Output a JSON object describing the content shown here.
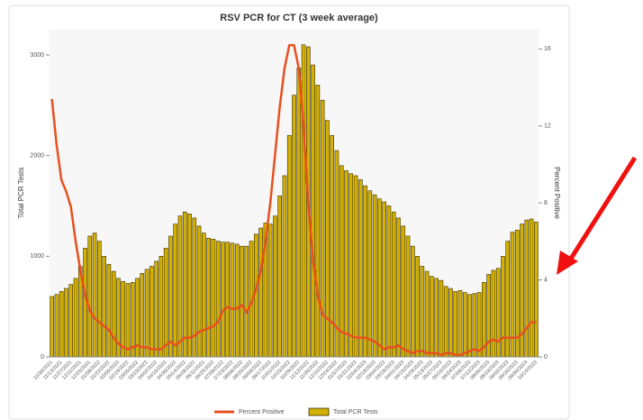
{
  "chart_data": {
    "type": "bar-line",
    "title": "RSV PCR for CT (3 week average)",
    "y_label": "Total PCR Tests",
    "y2_label": "Percent Positive",
    "categories": [
      "10/30/2021",
      null,
      "11/13/2021",
      null,
      "11/27/2021",
      null,
      "12/11/2021",
      null,
      "12/25/2021",
      null,
      "01/08/2022",
      null,
      "01/22/2022",
      null,
      "02/05/2022",
      null,
      "02/19/2022",
      null,
      "03/05/2022",
      null,
      "03/19/2022",
      null,
      "04/02/2022",
      null,
      "04/16/2022",
      null,
      "04/30/2022",
      null,
      "05/14/2022",
      null,
      "05/28/2022",
      null,
      "06/11/2022",
      null,
      "06/25/2022",
      null,
      "07/09/2022",
      null,
      "07/23/2022",
      null,
      "08/06/2022",
      null,
      "08/20/2022",
      null,
      "09/03/2022",
      null,
      "09/17/2022",
      null,
      "10/01/2022",
      null,
      "10/15/2022",
      null,
      "10/29/2022",
      null,
      "11/12/2022",
      null,
      "11/26/2022",
      null,
      "12/10/2022",
      null,
      "12/24/2022",
      null,
      "01/07/2023",
      null,
      "01/21/2023",
      null,
      "02/04/2023",
      null,
      "02/18/2023",
      null,
      "03/04/2023",
      null,
      "03/18/2023",
      null,
      "04/01/2023",
      null,
      "04/15/2023",
      null,
      "04/29/2023",
      null,
      "05/13/2023",
      null,
      "05/27/2023",
      null,
      "06/10/2023",
      null,
      "06/24/2023",
      null,
      "07/08/2023",
      null,
      "07/22/2023",
      null,
      "08/05/2023",
      null,
      "08/19/2023",
      null,
      "09/02/2023",
      null,
      "09/16/2023",
      null,
      "09/30/2023",
      null,
      "10/14/2023"
    ],
    "series": [
      {
        "name": "Percent Positive",
        "kind": "line",
        "axis": "y2",
        "color": "#e8501e",
        "values": [
          13.4,
          11,
          9.2,
          8.6,
          7.8,
          6,
          4.5,
          3.2,
          2.4,
          2,
          1.8,
          1.6,
          1.4,
          1,
          0.7,
          0.5,
          0.4,
          0.5,
          0.6,
          0.5,
          0.5,
          0.4,
          0.4,
          0.4,
          0.6,
          0.8,
          0.6,
          0.8,
          1,
          1,
          1.1,
          1.3,
          1.4,
          1.5,
          1.6,
          1.8,
          2.4,
          2.6,
          2.5,
          2.5,
          2.7,
          2.3,
          2.8,
          3.5,
          4.5,
          6,
          8,
          10.5,
          13,
          15,
          16.2,
          16.2,
          15,
          12,
          8,
          5,
          3.2,
          2.2,
          2,
          1.8,
          1.5,
          1.3,
          1.2,
          1.1,
          1,
          1,
          1,
          0.9,
          0.8,
          0.6,
          0.4,
          0.5,
          0.5,
          0.6,
          0.4,
          0.3,
          0.2,
          0.3,
          0.3,
          0.2,
          0.2,
          0.2,
          0.1,
          0.2,
          0.2,
          0.1,
          0.1,
          0.2,
          0.3,
          0.4,
          0.3,
          0.5,
          0.8,
          0.9,
          0.8,
          1,
          1,
          1,
          1,
          1.2,
          1.5,
          1.8,
          1.8
        ]
      },
      {
        "name": "Total PCR Tests",
        "kind": "bar",
        "color": "#d4b000",
        "values": [
          600,
          620,
          650,
          680,
          720,
          780,
          900,
          1080,
          1200,
          1230,
          1150,
          1000,
          920,
          850,
          780,
          750,
          730,
          740,
          780,
          830,
          870,
          900,
          950,
          1000,
          1080,
          1200,
          1320,
          1400,
          1440,
          1420,
          1380,
          1300,
          1230,
          1180,
          1170,
          1150,
          1140,
          1140,
          1130,
          1120,
          1100,
          1100,
          1150,
          1220,
          1280,
          1330,
          1320,
          1400,
          1600,
          1800,
          2200,
          2600,
          2870,
          3100,
          3080,
          2900,
          2700,
          2550,
          2350,
          2200,
          2050,
          1900,
          1850,
          1820,
          1800,
          1760,
          1700,
          1650,
          1610,
          1570,
          1540,
          1500,
          1440,
          1380,
          1300,
          1200,
          1100,
          1000,
          900,
          850,
          800,
          780,
          760,
          700,
          680,
          650,
          660,
          640,
          620,
          630,
          640,
          740,
          820,
          860,
          880,
          1000,
          1150,
          1240,
          1260,
          1320,
          1360,
          1370,
          1340
        ]
      }
    ],
    "ylim": [
      0,
      3250
    ],
    "yticks": [
      0,
      1000,
      2000,
      3000
    ],
    "y2lim": [
      0,
      17
    ],
    "y2ticks": [
      0,
      4,
      8,
      12,
      16
    ]
  }
}
